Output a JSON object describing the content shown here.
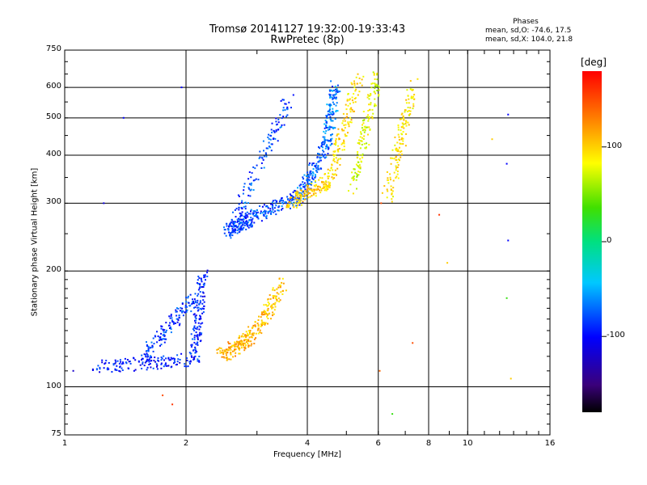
{
  "header": {
    "title_line1": "Tromsø 20141127 19:32:00-19:33:43",
    "title_line2": "RwPretec (8p)"
  },
  "stats": {
    "heading": "Phases",
    "line_o": "mean, sd,O: -74.6, 17.5",
    "line_x": "mean, sd,X: 104.0, 21.8"
  },
  "colorbar": {
    "unit_label": "[deg]",
    "ticks": [
      "100",
      "0",
      "-100"
    ],
    "tick_values": [
      100,
      0,
      -100
    ],
    "range": [
      -180,
      180
    ]
  },
  "chart_data": {
    "type": "scatter",
    "title": "Tromsø 20141127 19:32:00-19:33:43",
    "subtitle": "RwPretec (8p)",
    "xlabel": "Frequency [MHz]",
    "ylabel": "Stationary phase Virtual Height [km]",
    "xscale": "log",
    "yscale": "log",
    "xlim": [
      1,
      16
    ],
    "ylim": [
      75,
      750
    ],
    "x_ticks": [
      1,
      2,
      4,
      6,
      8,
      10,
      16
    ],
    "x_tick_labels": [
      "1",
      "2",
      "4",
      "6",
      "8",
      "10",
      "16"
    ],
    "y_ticks": [
      75,
      100,
      200,
      300,
      400,
      500,
      600,
      750
    ],
    "y_tick_labels": [
      "75",
      "100",
      "200",
      "300",
      "400",
      "500",
      "600",
      "750"
    ],
    "grid": true,
    "color_encodes": "phase",
    "traces": [
      {
        "mode": "O",
        "freq": [
          1.18,
          2.1
        ],
        "height": [
          112,
          118
        ],
        "phase_mean": -95
      },
      {
        "mode": "O",
        "freq": [
          2.1,
          2.2
        ],
        "height": [
          118,
          195
        ],
        "phase_mean": -90
      },
      {
        "mode": "O",
        "freq": [
          1.55,
          2.1
        ],
        "height": [
          118,
          170
        ],
        "phase_mean": -85
      },
      {
        "mode": "O",
        "freq": [
          2.55,
          2.9
        ],
        "height": [
          255,
          275
        ],
        "phase_mean": -85
      },
      {
        "mode": "O",
        "freq": [
          2.9,
          3.8
        ],
        "height": [
          275,
          310
        ],
        "phase_mean": -80
      },
      {
        "mode": "O",
        "freq": [
          3.8,
          4.45
        ],
        "height": [
          310,
          420
        ],
        "phase_mean": -75
      },
      {
        "mode": "O",
        "freq": [
          4.45,
          4.7
        ],
        "height": [
          420,
          600
        ],
        "phase_mean": -70
      },
      {
        "mode": "O",
        "freq": [
          2.55,
          3.6
        ],
        "height": [
          250,
          560
        ],
        "phase_mean": -80
      },
      {
        "mode": "X",
        "freq": [
          2.45,
          2.9
        ],
        "height": [
          120,
          135
        ],
        "phase_mean": 110
      },
      {
        "mode": "X",
        "freq": [
          2.9,
          3.5
        ],
        "height": [
          135,
          185
        ],
        "phase_mean": 105
      },
      {
        "mode": "X",
        "freq": [
          3.6,
          4.5
        ],
        "height": [
          300,
          340
        ],
        "phase_mean": 100
      },
      {
        "mode": "X",
        "freq": [
          4.5,
          5.4
        ],
        "height": [
          340,
          640
        ],
        "phase_mean": 95
      },
      {
        "mode": "X",
        "freq": [
          5.2,
          6.0
        ],
        "height": [
          330,
          650
        ],
        "phase_mean": 75
      },
      {
        "mode": "X",
        "freq": [
          6.3,
          7.3
        ],
        "height": [
          300,
          610
        ],
        "phase_mean": 90
      }
    ],
    "isolated_points": [
      {
        "freq": 1.05,
        "height": 110,
        "phase": -120
      },
      {
        "freq": 1.25,
        "height": 300,
        "phase": -110
      },
      {
        "freq": 1.4,
        "height": 500,
        "phase": -100
      },
      {
        "freq": 1.75,
        "height": 95,
        "phase": 150
      },
      {
        "freq": 1.85,
        "height": 90,
        "phase": 160
      },
      {
        "freq": 1.95,
        "height": 600,
        "phase": -100
      },
      {
        "freq": 6.05,
        "height": 110,
        "phase": 140
      },
      {
        "freq": 6.1,
        "height": 300,
        "phase": 150
      },
      {
        "freq": 6.5,
        "height": 85,
        "phase": 30
      },
      {
        "freq": 7.3,
        "height": 130,
        "phase": 150
      },
      {
        "freq": 8.5,
        "height": 280,
        "phase": 160
      },
      {
        "freq": 8.9,
        "height": 210,
        "phase": 100
      },
      {
        "freq": 12.5,
        "height": 170,
        "phase": 30
      },
      {
        "freq": 12.8,
        "height": 105,
        "phase": 100
      },
      {
        "freq": 12.6,
        "height": 240,
        "phase": -100
      },
      {
        "freq": 12.6,
        "height": 510,
        "phase": -100
      },
      {
        "freq": 11.5,
        "height": 440,
        "phase": 100
      },
      {
        "freq": 12.5,
        "height": 380,
        "phase": -100
      }
    ]
  },
  "colors": {
    "background": "#ffffff",
    "grid": "#000000",
    "text": "#000000"
  }
}
